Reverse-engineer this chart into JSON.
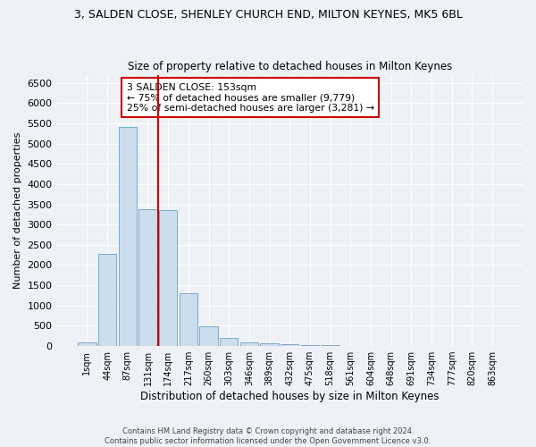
{
  "title1": "3, SALDEN CLOSE, SHENLEY CHURCH END, MILTON KEYNES, MK5 6BL",
  "title2": "Size of property relative to detached houses in Milton Keynes",
  "xlabel": "Distribution of detached houses by size in Milton Keynes",
  "ylabel": "Number of detached properties",
  "footer": "Contains HM Land Registry data © Crown copyright and database right 2024.\nContains public sector information licensed under the Open Government Licence v3.0.",
  "bar_labels": [
    "1sqm",
    "44sqm",
    "87sqm",
    "131sqm",
    "174sqm",
    "217sqm",
    "260sqm",
    "303sqm",
    "346sqm",
    "389sqm",
    "432sqm",
    "475sqm",
    "518sqm",
    "561sqm",
    "604sqm",
    "648sqm",
    "691sqm",
    "734sqm",
    "777sqm",
    "820sqm",
    "863sqm"
  ],
  "bar_values": [
    80,
    2280,
    5400,
    3380,
    3350,
    1310,
    480,
    200,
    100,
    60,
    40,
    30,
    20,
    10,
    5,
    0,
    0,
    0,
    0,
    0,
    0
  ],
  "bar_color": "#ccdded",
  "bar_edge_color": "#7aaac8",
  "ylim": [
    0,
    6700
  ],
  "yticks": [
    0,
    500,
    1000,
    1500,
    2000,
    2500,
    3000,
    3500,
    4000,
    4500,
    5000,
    5500,
    6000,
    6500
  ],
  "property_line_color": "#cc0000",
  "annotation_text": "3 SALDEN CLOSE: 153sqm\n← 75% of detached houses are smaller (9,779)\n25% of semi-detached houses are larger (3,281) →",
  "annotation_box_color": "#ffffff",
  "annotation_border_color": "#cc0000",
  "bg_color": "#eef2f7",
  "grid_color": "#ffffff",
  "title1_fontsize": 9,
  "title2_fontsize": 8.5
}
